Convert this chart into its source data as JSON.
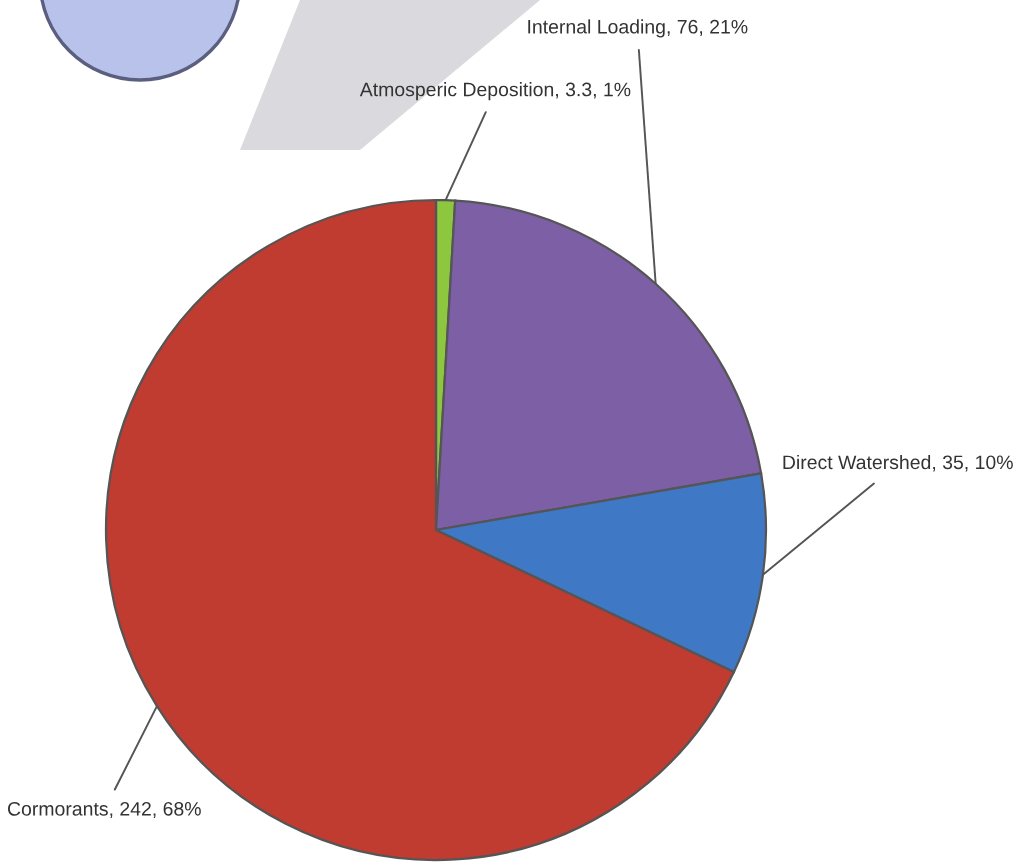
{
  "chart_data": {
    "type": "pie",
    "categories": [
      "Atmosperic Deposition",
      "Internal Loading",
      "Direct Watershed",
      "Cormorants"
    ],
    "values": [
      3.3,
      76,
      35,
      242
    ],
    "value_labels": [
      "3.3, 1%",
      "76, 21%",
      "35, 10%",
      "242, 68%"
    ],
    "colors": [
      "#8dc63f",
      "#7d5fa6",
      "#3f78c4",
      "#c03b30"
    ]
  }
}
